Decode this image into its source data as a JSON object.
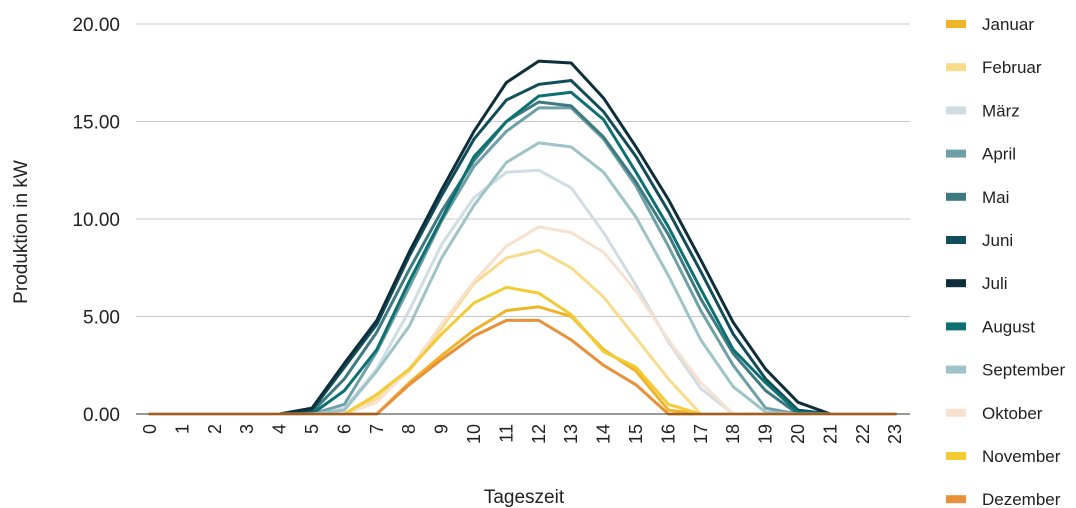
{
  "chart_data": {
    "type": "line",
    "title": "",
    "xlabel": "Tageszeit",
    "ylabel": "Produktion in kW",
    "x": [
      0,
      1,
      2,
      3,
      4,
      5,
      6,
      7,
      8,
      9,
      10,
      11,
      12,
      13,
      14,
      15,
      16,
      17,
      18,
      19,
      20,
      21,
      22,
      23
    ],
    "x_tick_labels": [
      "0",
      "1",
      "2",
      "3",
      "4",
      "5",
      "6",
      "7",
      "8",
      "9",
      "10",
      "11",
      "12",
      "13",
      "14",
      "15",
      "16",
      "17",
      "18",
      "19",
      "20",
      "21",
      "22",
      "23"
    ],
    "y_tick_labels": [
      "0.00",
      "5.00",
      "10.00",
      "15.00",
      "20.00"
    ],
    "ylim": [
      0,
      20
    ],
    "grid": true,
    "legend_position": "right",
    "series": [
      {
        "name": "Januar",
        "color": "#F0B429",
        "values": [
          0,
          0,
          0,
          0,
          0,
          0,
          0,
          0,
          1.6,
          3,
          4.3,
          5.3,
          5.5,
          5,
          3.3,
          2.2,
          0.2,
          0,
          0,
          0,
          0,
          0,
          0,
          0
        ]
      },
      {
        "name": "Februar",
        "color": "#F9DB8C",
        "values": [
          0,
          0,
          0,
          0,
          0,
          0,
          0,
          0.8,
          2.2,
          4.4,
          6.7,
          8,
          8.4,
          7.5,
          6,
          3.9,
          1.8,
          0,
          0,
          0,
          0,
          0,
          0,
          0
        ]
      },
      {
        "name": "März",
        "color": "#D0DDE2",
        "values": [
          0,
          0,
          0,
          0,
          0,
          0,
          0.3,
          2.3,
          5.3,
          8.7,
          11.1,
          12.4,
          12.5,
          11.6,
          9.3,
          6.6,
          3.7,
          1.3,
          0,
          0,
          0,
          0,
          0,
          0
        ]
      },
      {
        "name": "April",
        "color": "#6FA0A8",
        "values": [
          0,
          0,
          0,
          0,
          0,
          0,
          0.5,
          3.2,
          6.5,
          9.9,
          12.7,
          14.5,
          15.7,
          15.7,
          14.1,
          11.7,
          8.6,
          5.3,
          2.5,
          0.3,
          0,
          0,
          0,
          0
        ]
      },
      {
        "name": "Mai",
        "color": "#3E7A82",
        "values": [
          0,
          0,
          0,
          0,
          0,
          0.1,
          1.8,
          4.2,
          7.4,
          10.4,
          13,
          15,
          16,
          15.8,
          14.2,
          11.9,
          9.2,
          5.9,
          3.1,
          1.2,
          0,
          0,
          0,
          0
        ]
      },
      {
        "name": "Juni",
        "color": "#124E5A",
        "values": [
          0,
          0,
          0,
          0,
          0,
          0.2,
          2.4,
          4.6,
          8.1,
          11.2,
          14.1,
          16.1,
          16.9,
          17.1,
          15.5,
          13.2,
          10.4,
          7.3,
          4.1,
          1.8,
          0.2,
          0,
          0,
          0
        ]
      },
      {
        "name": "Juli",
        "color": "#0D2E3A",
        "values": [
          0,
          0,
          0,
          0,
          0,
          0.3,
          2.6,
          4.8,
          8.3,
          11.5,
          14.5,
          17,
          18.1,
          18,
          16.2,
          13.7,
          11,
          7.9,
          4.7,
          2.3,
          0.6,
          0,
          0,
          0
        ]
      },
      {
        "name": "August",
        "color": "#0E7171",
        "values": [
          0,
          0,
          0,
          0,
          0,
          0,
          1.2,
          3.3,
          6.8,
          10,
          13.2,
          15,
          16.3,
          16.5,
          15.1,
          12.4,
          9.6,
          6.4,
          3.3,
          1.6,
          0.1,
          0,
          0,
          0
        ]
      },
      {
        "name": "September",
        "color": "#9EC3C9",
        "values": [
          0,
          0,
          0,
          0,
          0,
          0,
          0.2,
          2.2,
          4.5,
          8,
          10.7,
          12.9,
          13.9,
          13.7,
          12.4,
          10.1,
          7.1,
          3.8,
          1.4,
          0.1,
          0,
          0,
          0,
          0
        ]
      },
      {
        "name": "Oktober",
        "color": "#F8E1CF",
        "values": [
          0,
          0,
          0,
          0,
          0,
          0,
          0,
          0.6,
          2.3,
          4.6,
          6.8,
          8.6,
          9.6,
          9.3,
          8.3,
          6.3,
          3.8,
          1.6,
          0,
          0,
          0,
          0,
          0,
          0
        ]
      },
      {
        "name": "November",
        "color": "#F3CB35",
        "values": [
          0,
          0,
          0,
          0,
          0,
          0,
          0,
          1,
          2.3,
          4.1,
          5.7,
          6.5,
          6.2,
          5.1,
          3.2,
          2.4,
          0.5,
          0,
          0,
          0,
          0,
          0,
          0,
          0
        ]
      },
      {
        "name": "Dezember",
        "color": "#E8903A",
        "values": [
          0,
          0,
          0,
          0,
          0,
          0,
          0,
          0,
          1.5,
          2.8,
          4,
          4.8,
          4.8,
          3.8,
          2.5,
          1.5,
          0,
          0,
          0,
          0,
          0,
          0,
          0,
          0
        ]
      }
    ]
  }
}
